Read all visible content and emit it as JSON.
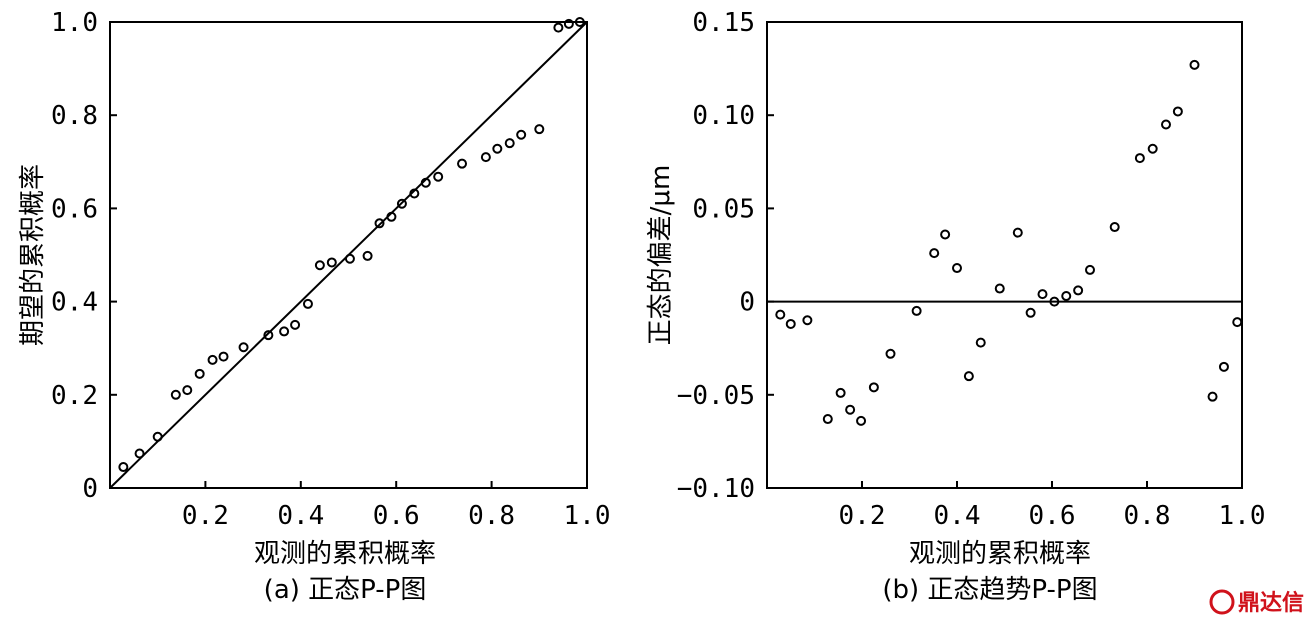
{
  "chart_data": [
    {
      "type": "scatter",
      "caption": "(a) 正态P-P图",
      "xlabel": "观测的累积概率",
      "ylabel": "期望的累积概率",
      "xlim": [
        0,
        1.0
      ],
      "ylim": [
        0,
        1.0
      ],
      "xticks": [
        0.2,
        0.4,
        0.6,
        0.8,
        1.0
      ],
      "xtick_labels": [
        "0.2",
        "0.4",
        "0.6",
        "0.8",
        "1.0"
      ],
      "yticks": [
        0,
        0.2,
        0.4,
        0.6,
        0.8,
        1.0
      ],
      "ytick_labels": [
        "0",
        "0.2",
        "0.4",
        "0.6",
        "0.8",
        "1.0"
      ],
      "reference_line": {
        "type": "diagonal",
        "from": [
          0,
          0
        ],
        "to": [
          1,
          1
        ]
      },
      "points": [
        [
          0.028,
          0.045
        ],
        [
          0.062,
          0.074
        ],
        [
          0.1,
          0.11
        ],
        [
          0.138,
          0.2
        ],
        [
          0.162,
          0.21
        ],
        [
          0.188,
          0.245
        ],
        [
          0.215,
          0.275
        ],
        [
          0.238,
          0.282
        ],
        [
          0.28,
          0.302
        ],
        [
          0.332,
          0.328
        ],
        [
          0.365,
          0.336
        ],
        [
          0.388,
          0.35
        ],
        [
          0.415,
          0.395
        ],
        [
          0.44,
          0.478
        ],
        [
          0.465,
          0.484
        ],
        [
          0.503,
          0.492
        ],
        [
          0.54,
          0.498
        ],
        [
          0.565,
          0.568
        ],
        [
          0.59,
          0.582
        ],
        [
          0.612,
          0.61
        ],
        [
          0.638,
          0.632
        ],
        [
          0.662,
          0.655
        ],
        [
          0.688,
          0.668
        ],
        [
          0.738,
          0.696
        ],
        [
          0.788,
          0.71
        ],
        [
          0.812,
          0.728
        ],
        [
          0.838,
          0.74
        ],
        [
          0.862,
          0.758
        ],
        [
          0.9,
          0.77
        ],
        [
          0.94,
          0.988
        ],
        [
          0.962,
          0.996
        ],
        [
          0.985,
          1.0
        ]
      ]
    },
    {
      "type": "scatter",
      "caption": "(b) 正态趋势P-P图",
      "xlabel": "观测的累积概率",
      "ylabel": "正态的偏差/μm",
      "xlim": [
        0,
        1.0
      ],
      "ylim": [
        -0.1,
        0.15
      ],
      "xticks": [
        0.2,
        0.4,
        0.6,
        0.8,
        1.0
      ],
      "xtick_labels": [
        "0.2",
        "0.4",
        "0.6",
        "0.8",
        "1.0"
      ],
      "yticks": [
        -0.1,
        -0.05,
        0,
        0.05,
        0.1,
        0.15
      ],
      "ytick_labels": [
        "−0.10",
        "−0.05",
        "0",
        "0.05",
        "0.10",
        "0.15"
      ],
      "reference_line": {
        "type": "horizontal",
        "y": 0
      },
      "points": [
        [
          0.028,
          -0.007
        ],
        [
          0.05,
          -0.012
        ],
        [
          0.085,
          -0.01
        ],
        [
          0.128,
          -0.063
        ],
        [
          0.155,
          -0.049
        ],
        [
          0.175,
          -0.058
        ],
        [
          0.198,
          -0.064
        ],
        [
          0.225,
          -0.046
        ],
        [
          0.26,
          -0.028
        ],
        [
          0.315,
          -0.005
        ],
        [
          0.352,
          0.026
        ],
        [
          0.375,
          0.036
        ],
        [
          0.4,
          0.018
        ],
        [
          0.425,
          -0.04
        ],
        [
          0.45,
          -0.022
        ],
        [
          0.49,
          0.007
        ],
        [
          0.528,
          0.037
        ],
        [
          0.555,
          -0.006
        ],
        [
          0.58,
          0.004
        ],
        [
          0.605,
          0.0
        ],
        [
          0.63,
          0.003
        ],
        [
          0.655,
          0.006
        ],
        [
          0.68,
          0.017
        ],
        [
          0.732,
          0.04
        ],
        [
          0.785,
          0.077
        ],
        [
          0.812,
          0.082
        ],
        [
          0.84,
          0.095
        ],
        [
          0.865,
          0.102
        ],
        [
          0.9,
          0.127
        ],
        [
          0.938,
          -0.051
        ],
        [
          0.962,
          -0.035
        ],
        [
          0.99,
          -0.011
        ]
      ]
    }
  ],
  "watermark": {
    "text": "鼎达信",
    "color": "#d0121b"
  }
}
